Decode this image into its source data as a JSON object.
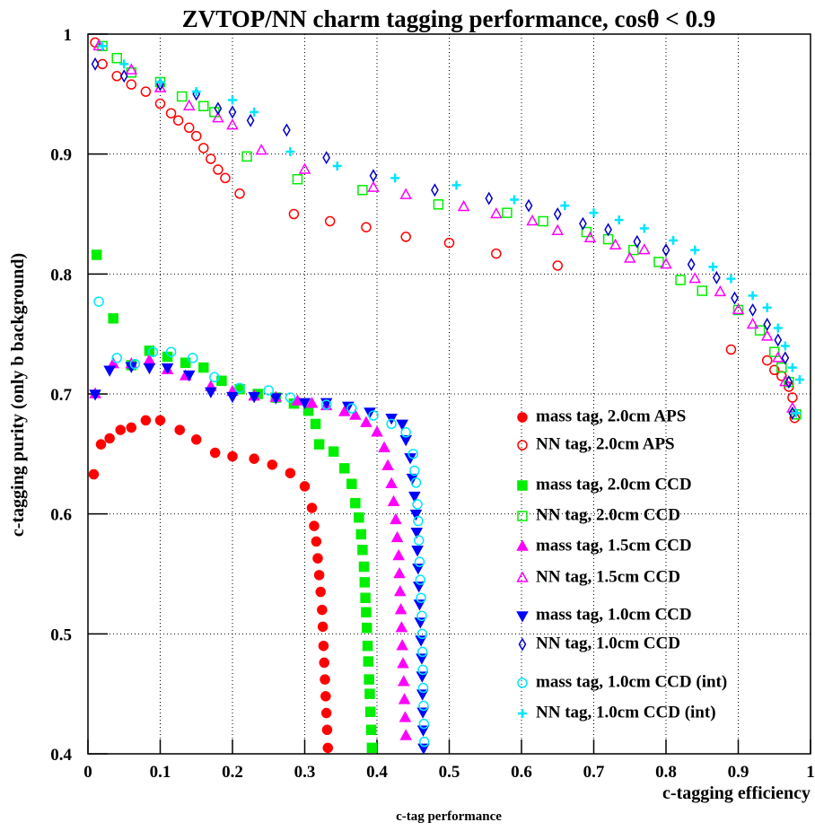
{
  "chart_data": {
    "type": "scatter",
    "title": "ZVTOP/NN charm tagging performance, cosθ < 0.9",
    "x_label": "c-tagging efficiency",
    "y_label": "c-tagging purity (only b background)",
    "caption": "c-tag performance",
    "xlim": [
      0,
      1
    ],
    "ylim": [
      0.4,
      1
    ],
    "xticks": [
      0,
      0.1,
      0.2,
      0.3,
      0.4,
      0.5,
      0.6,
      0.7,
      0.8,
      0.9,
      1
    ],
    "yticks": [
      0.4,
      0.5,
      0.6,
      0.7,
      0.8,
      0.9,
      1
    ],
    "grid": true,
    "legend": "lower right",
    "series": [
      {
        "name": "mass tag, 2.0cm APS",
        "color": "#ff0000",
        "marker": "circle",
        "filled": true,
        "x": [
          0.008,
          0.018,
          0.03,
          0.045,
          0.06,
          0.08,
          0.1,
          0.127,
          0.15,
          0.176,
          0.2,
          0.23,
          0.255,
          0.28,
          0.3,
          0.31,
          0.313,
          0.316,
          0.318,
          0.32,
          0.322,
          0.324,
          0.325,
          0.326,
          0.327,
          0.328,
          0.329,
          0.33,
          0.331,
          0.332
        ],
        "values": [
          0.633,
          0.658,
          0.663,
          0.67,
          0.672,
          0.678,
          0.678,
          0.67,
          0.662,
          0.651,
          0.648,
          0.646,
          0.641,
          0.634,
          0.623,
          0.605,
          0.59,
          0.577,
          0.563,
          0.549,
          0.535,
          0.52,
          0.506,
          0.49,
          0.476,
          0.462,
          0.448,
          0.434,
          0.42,
          0.405
        ]
      },
      {
        "name": "NN tag, 2.0cm APS",
        "color": "#ff0000",
        "marker": "circle",
        "filled": false,
        "x": [
          0.01,
          0.02,
          0.04,
          0.06,
          0.08,
          0.1,
          0.115,
          0.125,
          0.14,
          0.15,
          0.16,
          0.17,
          0.18,
          0.19,
          0.21,
          0.285,
          0.335,
          0.385,
          0.44,
          0.5,
          0.565,
          0.65,
          0.89,
          0.94,
          0.95,
          0.96,
          0.97,
          0.975,
          0.978
        ],
        "values": [
          0.993,
          0.975,
          0.965,
          0.958,
          0.952,
          0.942,
          0.934,
          0.928,
          0.922,
          0.915,
          0.905,
          0.896,
          0.887,
          0.88,
          0.867,
          0.85,
          0.844,
          0.839,
          0.831,
          0.826,
          0.817,
          0.807,
          0.737,
          0.728,
          0.72,
          0.715,
          0.706,
          0.697,
          0.68
        ]
      },
      {
        "name": "mass tag, 2.0cm CCD",
        "color": "#00ee00",
        "marker": "square",
        "filled": true,
        "x": [
          0.012,
          0.035,
          0.06,
          0.085,
          0.11,
          0.135,
          0.16,
          0.185,
          0.21,
          0.235,
          0.26,
          0.285,
          0.305,
          0.315,
          0.32,
          0.34,
          0.355,
          0.365,
          0.37,
          0.375,
          0.378,
          0.38,
          0.382,
          0.383,
          0.384,
          0.385,
          0.386,
          0.387,
          0.388,
          0.389,
          0.39,
          0.391,
          0.392,
          0.393
        ],
        "values": [
          0.816,
          0.763,
          0.724,
          0.736,
          0.731,
          0.726,
          0.722,
          0.711,
          0.704,
          0.7,
          0.697,
          0.692,
          0.686,
          0.675,
          0.658,
          0.652,
          0.638,
          0.625,
          0.609,
          0.597,
          0.583,
          0.57,
          0.556,
          0.543,
          0.53,
          0.518,
          0.505,
          0.49,
          0.477,
          0.462,
          0.45,
          0.435,
          0.42,
          0.405
        ]
      },
      {
        "name": "NN tag, 2.0cm CCD",
        "color": "#00ee00",
        "marker": "square",
        "filled": false,
        "x": [
          0.02,
          0.04,
          0.06,
          0.1,
          0.13,
          0.16,
          0.175,
          0.22,
          0.29,
          0.38,
          0.485,
          0.58,
          0.63,
          0.69,
          0.72,
          0.755,
          0.79,
          0.82,
          0.85,
          0.9,
          0.93,
          0.95,
          0.96,
          0.97,
          0.98
        ],
        "values": [
          0.99,
          0.98,
          0.968,
          0.96,
          0.948,
          0.94,
          0.935,
          0.898,
          0.879,
          0.87,
          0.858,
          0.851,
          0.844,
          0.835,
          0.829,
          0.82,
          0.81,
          0.795,
          0.786,
          0.77,
          0.753,
          0.735,
          0.722,
          0.71,
          0.683
        ]
      },
      {
        "name": "mass tag, 1.5cm CCD",
        "color": "#ff00ff",
        "marker": "triangle-up",
        "filled": true,
        "x": [
          0.01,
          0.035,
          0.06,
          0.085,
          0.11,
          0.135,
          0.17,
          0.2,
          0.23,
          0.26,
          0.29,
          0.31,
          0.33,
          0.355,
          0.37,
          0.385,
          0.4,
          0.41,
          0.415,
          0.42,
          0.423,
          0.426,
          0.428,
          0.43,
          0.431,
          0.432,
          0.433,
          0.434,
          0.435,
          0.436,
          0.437,
          0.438,
          0.439,
          0.44
        ],
        "values": [
          0.7,
          0.725,
          0.725,
          0.728,
          0.72,
          0.715,
          0.706,
          0.702,
          0.698,
          0.697,
          0.694,
          0.692,
          0.69,
          0.685,
          0.682,
          0.676,
          0.668,
          0.655,
          0.64,
          0.625,
          0.61,
          0.595,
          0.58,
          0.565,
          0.55,
          0.535,
          0.52,
          0.505,
          0.49,
          0.475,
          0.46,
          0.445,
          0.43,
          0.415
        ]
      },
      {
        "name": "NN tag, 1.5cm CCD",
        "color": "#ff00ff",
        "marker": "triangle-up",
        "filled": false,
        "x": [
          0.015,
          0.06,
          0.1,
          0.14,
          0.18,
          0.2,
          0.24,
          0.3,
          0.395,
          0.44,
          0.52,
          0.565,
          0.615,
          0.65,
          0.695,
          0.73,
          0.75,
          0.77,
          0.8,
          0.84,
          0.875,
          0.9,
          0.92,
          0.94,
          0.955,
          0.965,
          0.975
        ],
        "values": [
          0.99,
          0.97,
          0.955,
          0.94,
          0.93,
          0.924,
          0.903,
          0.887,
          0.872,
          0.866,
          0.856,
          0.85,
          0.844,
          0.836,
          0.83,
          0.824,
          0.813,
          0.82,
          0.808,
          0.796,
          0.785,
          0.77,
          0.758,
          0.748,
          0.73,
          0.71,
          0.688
        ]
      },
      {
        "name": "mass tag, 1.0cm CCD",
        "color": "#0000ff",
        "marker": "triangle-down",
        "filled": true,
        "x": [
          0.01,
          0.03,
          0.06,
          0.085,
          0.11,
          0.14,
          0.17,
          0.2,
          0.23,
          0.26,
          0.3,
          0.33,
          0.36,
          0.39,
          0.42,
          0.435,
          0.44,
          0.446,
          0.449,
          0.452,
          0.454,
          0.455,
          0.456,
          0.457,
          0.458,
          0.459,
          0.46,
          0.461,
          0.462,
          0.4625,
          0.463,
          0.4635,
          0.464,
          0.4645
        ],
        "values": [
          0.7,
          0.72,
          0.723,
          0.722,
          0.722,
          0.716,
          0.702,
          0.698,
          0.698,
          0.697,
          0.693,
          0.693,
          0.69,
          0.685,
          0.68,
          0.675,
          0.662,
          0.647,
          0.63,
          0.615,
          0.6,
          0.585,
          0.57,
          0.555,
          0.54,
          0.525,
          0.51,
          0.495,
          0.48,
          0.465,
          0.45,
          0.435,
          0.42,
          0.405
        ]
      },
      {
        "name": "NN tag, 1.0cm CCD",
        "color": "#0000cc",
        "marker": "diamond",
        "filled": false,
        "x": [
          0.01,
          0.05,
          0.1,
          0.15,
          0.18,
          0.2,
          0.225,
          0.275,
          0.33,
          0.395,
          0.48,
          0.555,
          0.61,
          0.65,
          0.685,
          0.72,
          0.76,
          0.8,
          0.835,
          0.87,
          0.895,
          0.92,
          0.94,
          0.955,
          0.965,
          0.97,
          0.975
        ],
        "values": [
          0.975,
          0.965,
          0.958,
          0.95,
          0.938,
          0.935,
          0.928,
          0.92,
          0.897,
          0.882,
          0.87,
          0.863,
          0.857,
          0.85,
          0.842,
          0.837,
          0.827,
          0.82,
          0.808,
          0.797,
          0.78,
          0.77,
          0.758,
          0.745,
          0.73,
          0.71,
          0.684
        ]
      },
      {
        "name": "mass tag, 1.0cm CCD (int)",
        "color": "#00e5ff",
        "marker": "circle",
        "filled": false,
        "x": [
          0.015,
          0.04,
          0.065,
          0.09,
          0.115,
          0.145,
          0.175,
          0.21,
          0.25,
          0.28,
          0.33,
          0.365,
          0.395,
          0.42,
          0.44,
          0.45,
          0.452,
          0.454,
          0.456,
          0.457,
          0.458,
          0.459,
          0.46,
          0.461,
          0.462,
          0.4625,
          0.463,
          0.4635,
          0.464,
          0.4645,
          0.465,
          0.4655
        ],
        "values": [
          0.777,
          0.73,
          0.725,
          0.735,
          0.735,
          0.73,
          0.714,
          0.705,
          0.703,
          0.697,
          0.691,
          0.688,
          0.682,
          0.675,
          0.668,
          0.65,
          0.636,
          0.626,
          0.608,
          0.594,
          0.578,
          0.56,
          0.545,
          0.53,
          0.515,
          0.5,
          0.485,
          0.47,
          0.455,
          0.44,
          0.425,
          0.41
        ]
      },
      {
        "name": "NN tag, 1.0cm CCD (int)",
        "color": "#00e5ff",
        "marker": "plus",
        "filled": false,
        "x": [
          0.02,
          0.05,
          0.1,
          0.15,
          0.2,
          0.23,
          0.28,
          0.345,
          0.425,
          0.51,
          0.59,
          0.66,
          0.7,
          0.735,
          0.77,
          0.81,
          0.84,
          0.865,
          0.89,
          0.92,
          0.94,
          0.955,
          0.965,
          0.975,
          0.985,
          0.98
        ],
        "values": [
          0.99,
          0.975,
          0.96,
          0.952,
          0.945,
          0.935,
          0.902,
          0.89,
          0.88,
          0.874,
          0.862,
          0.857,
          0.851,
          0.845,
          0.838,
          0.828,
          0.82,
          0.806,
          0.796,
          0.782,
          0.772,
          0.755,
          0.74,
          0.722,
          0.712,
          0.684
        ]
      }
    ]
  }
}
